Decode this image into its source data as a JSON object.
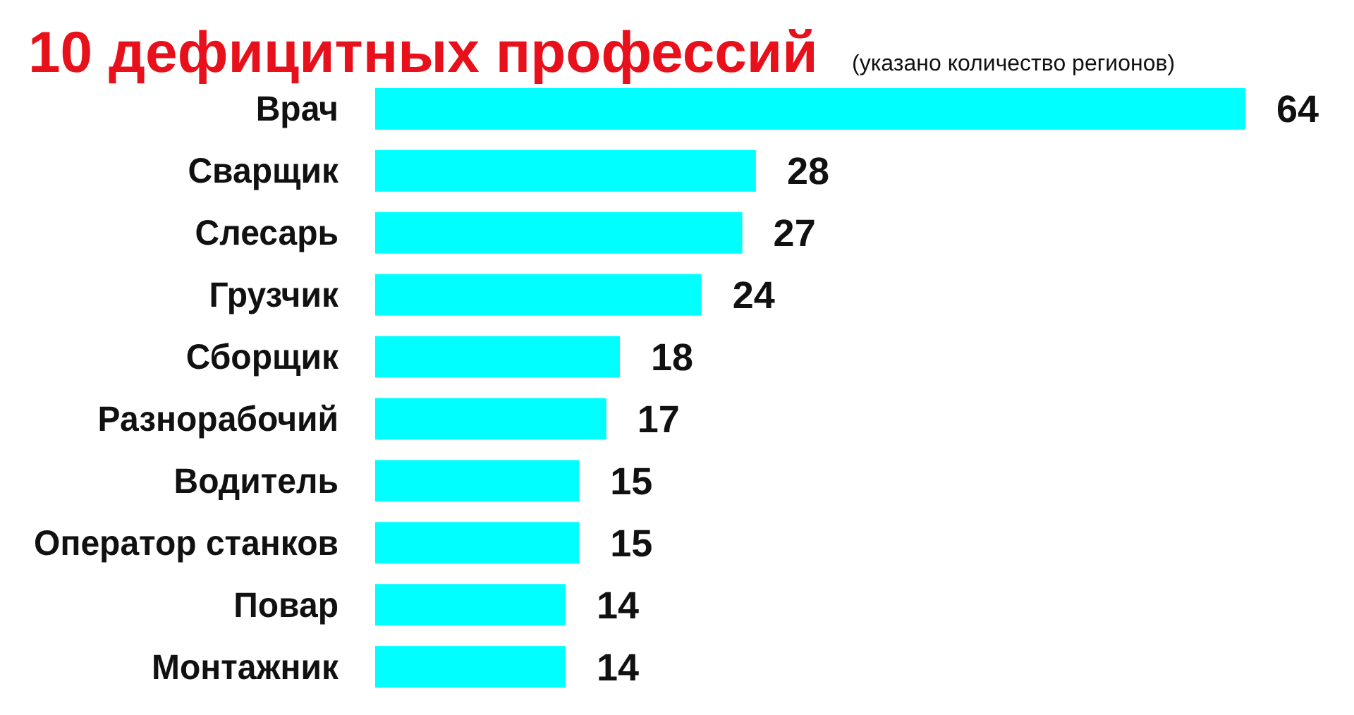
{
  "chart_data": {
    "type": "bar",
    "orientation": "horizontal",
    "title": "10 дефицитных профессий",
    "subtitle": "(указано количество регионов)",
    "categories": [
      "Врач",
      "Сварщик",
      "Слесарь",
      "Грузчик",
      "Сборщик",
      "Разнорабочий",
      "Водитель",
      "Оператор станков",
      "Повар",
      "Монтажник"
    ],
    "values": [
      64,
      28,
      27,
      24,
      18,
      17,
      15,
      15,
      14,
      14
    ],
    "color": "#00ffff",
    "data_labels": true
  }
}
